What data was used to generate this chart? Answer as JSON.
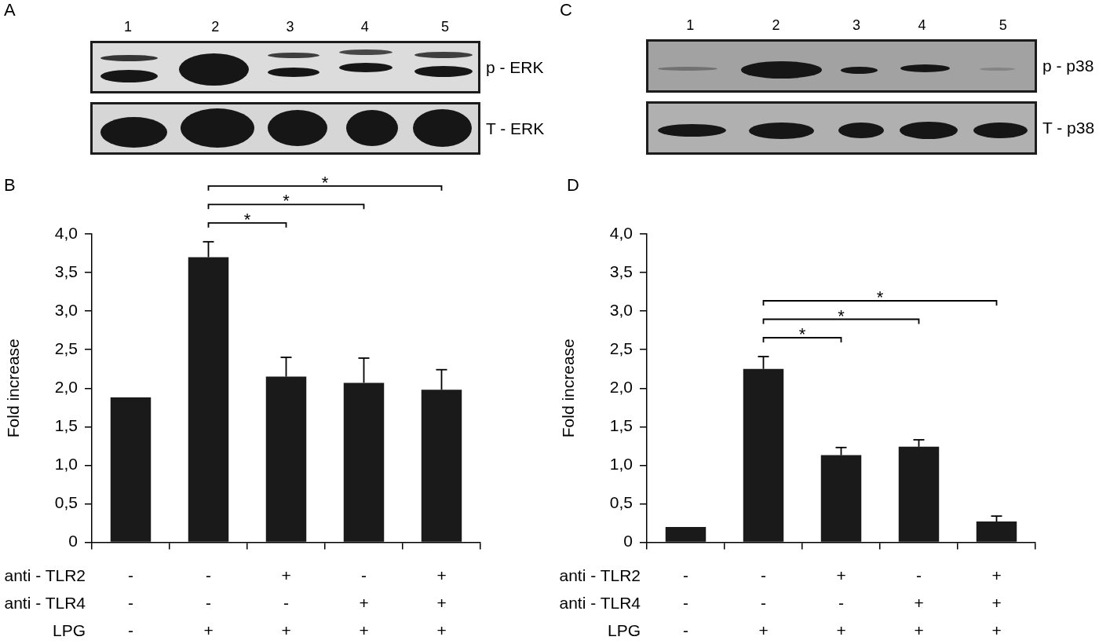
{
  "chart_data": [
    {
      "type": "other",
      "title": "A",
      "categories": [
        "1",
        "2",
        "3",
        "4",
        "5"
      ],
      "annotations": [
        "p - ERK",
        "T - ERK"
      ]
    },
    {
      "type": "other",
      "title": "C",
      "categories": [
        "1",
        "2",
        "3",
        "4",
        "5"
      ],
      "annotations": [
        "p - p38",
        "T - p38"
      ]
    },
    {
      "type": "bar",
      "title": "B",
      "ylabel": "Fold increase",
      "categories": [
        null,
        null,
        null,
        null,
        null
      ],
      "values": [
        1.88,
        3.7,
        2.15,
        2.07,
        1.98
      ],
      "errors": [
        null,
        [
          3.7,
          3.9
        ],
        [
          2.15,
          2.4
        ],
        [
          2.07,
          2.39
        ],
        [
          1.98,
          2.24
        ]
      ],
      "color": "#1a1a1a",
      "ylim": [
        0,
        4
      ],
      "yticks": [
        0,
        {
          "value": 0.5,
          "label": "0,5"
        },
        {
          "value": 1,
          "label": "1,0"
        },
        {
          "value": 1.5,
          "label": "1,5"
        },
        {
          "value": 2,
          "label": "2,0"
        },
        {
          "value": 2.5,
          "label": "2,5"
        },
        {
          "value": 3,
          "label": "3,0"
        },
        {
          "value": 3.5,
          "label": "3,5"
        },
        {
          "value": 4,
          "label": "4,0"
        }
      ],
      "tick_labels": "y",
      "annotations": [
        "*",
        "*",
        "*",
        "anti - TLR2",
        "-",
        "-",
        "+",
        "-",
        "+",
        "anti - TLR4",
        "-",
        "-",
        "-",
        "+",
        "+",
        "LPG",
        "-",
        "+",
        "+",
        "+",
        "+"
      ]
    },
    {
      "type": "bar",
      "title": "D",
      "ylabel": "Fold increase",
      "categories": [
        null,
        null,
        null,
        null,
        null
      ],
      "values": [
        0.2,
        2.25,
        1.13,
        1.24,
        0.27
      ],
      "errors": [
        null,
        [
          2.25,
          2.41
        ],
        [
          1.13,
          1.23
        ],
        [
          1.24,
          1.33
        ],
        [
          0.27,
          0.34
        ]
      ],
      "color": "#1a1a1a",
      "ylim": [
        0,
        4
      ],
      "yticks": [
        0,
        {
          "value": 0.5,
          "label": "0,5"
        },
        {
          "value": 1,
          "label": "1,0"
        },
        {
          "value": 1.5,
          "label": "1,5"
        },
        {
          "value": 2,
          "label": "2,0"
        },
        {
          "value": 2.5,
          "label": "2,5"
        },
        {
          "value": 3,
          "label": "3,0"
        },
        {
          "value": 3.5,
          "label": "3,5"
        },
        {
          "value": 4,
          "label": "4,0"
        }
      ],
      "tick_labels": "y",
      "annotations": [
        "*",
        "*",
        "*",
        "anti - TLR2",
        "-",
        "-",
        "+",
        "-",
        "+",
        "anti - TLR4",
        "-",
        "-",
        "-",
        "+",
        "+",
        "LPG",
        "-",
        "+",
        "+",
        "+",
        "+"
      ]
    }
  ]
}
